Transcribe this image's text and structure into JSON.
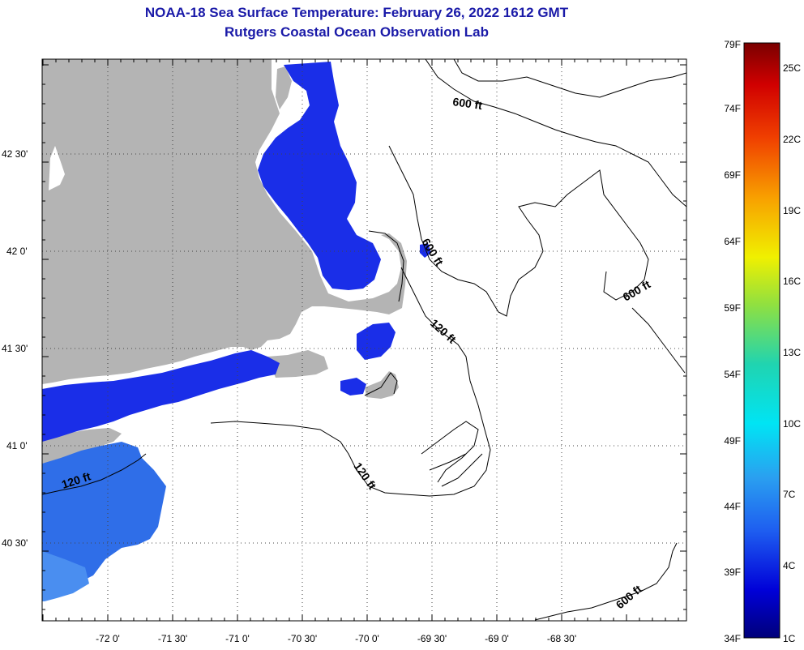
{
  "title_line1": "NOAA-18 Sea Surface Temperature:  February 26, 2022 1612 GMT",
  "title_line2": "Rutgers Coastal Ocean Observation Lab",
  "colors": {
    "land": "#b4b4b4",
    "water_cold": "#1a2ee8",
    "water_cool": "#2f6ee8",
    "cloud": "#ffffff",
    "title": "#1a1aa8"
  },
  "lat_labels": [
    "42 30'",
    "42 0'",
    "41 30'",
    "41 0'",
    "40 30'"
  ],
  "lon_labels": [
    "-72 0'",
    "-71 30'",
    "-71 0'",
    "-70 30'",
    "-70 0'",
    "-69 30'",
    "-69 0'",
    "-68 30'"
  ],
  "contour_labels": [
    {
      "text": "600 ft"
    },
    {
      "text": "600 ft"
    },
    {
      "text": "600 ft"
    },
    {
      "text": "600 ft"
    },
    {
      "text": "120 ft"
    },
    {
      "text": "120 ft"
    },
    {
      "text": "120 ft"
    }
  ],
  "colorbar": {
    "fahrenheit": [
      "79F",
      "74F",
      "69F",
      "64F",
      "59F",
      "54F",
      "49F",
      "44F",
      "39F",
      "34F"
    ],
    "celsius": [
      "25C",
      "22C",
      "19C",
      "16C",
      "13C",
      "10C",
      "7C",
      "4C",
      "1C"
    ]
  }
}
